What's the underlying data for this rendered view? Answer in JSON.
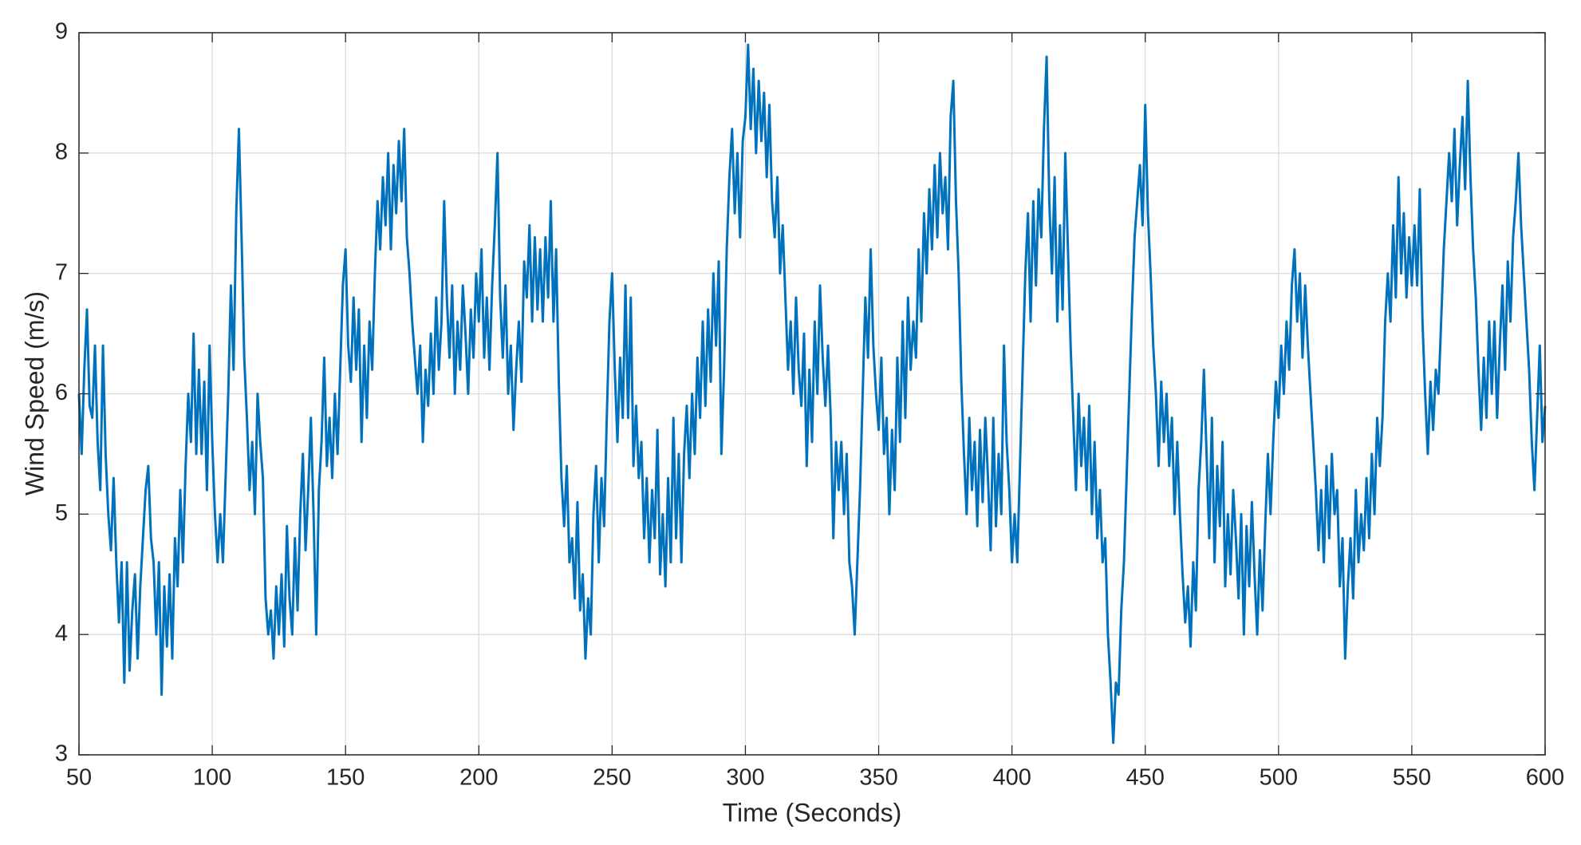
{
  "chart_data": {
    "type": "line",
    "xlabel": "Time (Seconds)",
    "ylabel": "Wind Speed (m/s)",
    "xlim": [
      50,
      600
    ],
    "ylim": [
      3,
      9
    ],
    "xticks": [
      50,
      100,
      150,
      200,
      250,
      300,
      350,
      400,
      450,
      500,
      550,
      600
    ],
    "yticks": [
      3,
      4,
      5,
      6,
      7,
      8,
      9
    ],
    "grid": true,
    "x": [
      50,
      51,
      52,
      53,
      54,
      55,
      56,
      57,
      58,
      59,
      60,
      61,
      62,
      63,
      64,
      65,
      66,
      67,
      68,
      69,
      70,
      71,
      72,
      73,
      74,
      75,
      76,
      77,
      78,
      79,
      80,
      81,
      82,
      83,
      84,
      85,
      86,
      87,
      88,
      89,
      90,
      91,
      92,
      93,
      94,
      95,
      96,
      97,
      98,
      99,
      100,
      101,
      102,
      103,
      104,
      105,
      106,
      107,
      108,
      109,
      110,
      111,
      112,
      113,
      114,
      115,
      116,
      117,
      118,
      119,
      120,
      121,
      122,
      123,
      124,
      125,
      126,
      127,
      128,
      129,
      130,
      131,
      132,
      133,
      134,
      135,
      136,
      137,
      138,
      139,
      140,
      141,
      142,
      143,
      144,
      145,
      146,
      147,
      148,
      149,
      150,
      151,
      152,
      153,
      154,
      155,
      156,
      157,
      158,
      159,
      160,
      161,
      162,
      163,
      164,
      165,
      166,
      167,
      168,
      169,
      170,
      171,
      172,
      173,
      174,
      175,
      176,
      177,
      178,
      179,
      180,
      181,
      182,
      183,
      184,
      185,
      186,
      187,
      188,
      189,
      190,
      191,
      192,
      193,
      194,
      195,
      196,
      197,
      198,
      199,
      200,
      201,
      202,
      203,
      204,
      205,
      206,
      207,
      208,
      209,
      210,
      211,
      212,
      213,
      214,
      215,
      216,
      217,
      218,
      219,
      220,
      221,
      222,
      223,
      224,
      225,
      226,
      227,
      228,
      229,
      230,
      231,
      232,
      233,
      234,
      235,
      236,
      237,
      238,
      239,
      240,
      241,
      242,
      243,
      244,
      245,
      246,
      247,
      248,
      249,
      250,
      251,
      252,
      253,
      254,
      255,
      256,
      257,
      258,
      259,
      260,
      261,
      262,
      263,
      264,
      265,
      266,
      267,
      268,
      269,
      270,
      271,
      272,
      273,
      274,
      275,
      276,
      277,
      278,
      279,
      280,
      281,
      282,
      283,
      284,
      285,
      286,
      287,
      288,
      289,
      290,
      291,
      292,
      293,
      294,
      295,
      296,
      297,
      298,
      299,
      300,
      301,
      302,
      303,
      304,
      305,
      306,
      307,
      308,
      309,
      310,
      311,
      312,
      313,
      314,
      315,
      316,
      317,
      318,
      319,
      320,
      321,
      322,
      323,
      324,
      325,
      326,
      327,
      328,
      329,
      330,
      331,
      332,
      333,
      334,
      335,
      336,
      337,
      338,
      339,
      340,
      341,
      342,
      343,
      344,
      345,
      346,
      347,
      348,
      349,
      350,
      351,
      352,
      353,
      354,
      355,
      356,
      357,
      358,
      359,
      360,
      361,
      362,
      363,
      364,
      365,
      366,
      367,
      368,
      369,
      370,
      371,
      372,
      373,
      374,
      375,
      376,
      377,
      378,
      379,
      380,
      381,
      382,
      383,
      384,
      385,
      386,
      387,
      388,
      389,
      390,
      391,
      392,
      393,
      394,
      395,
      396,
      397,
      398,
      399,
      400,
      401,
      402,
      403,
      404,
      405,
      406,
      407,
      408,
      409,
      410,
      411,
      412,
      413,
      414,
      415,
      416,
      417,
      418,
      419,
      420,
      421,
      422,
      423,
      424,
      425,
      426,
      427,
      428,
      429,
      430,
      431,
      432,
      433,
      434,
      435,
      436,
      437,
      438,
      439,
      440,
      441,
      442,
      443,
      444,
      445,
      446,
      447,
      448,
      449,
      450,
      451,
      452,
      453,
      454,
      455,
      456,
      457,
      458,
      459,
      460,
      461,
      462,
      463,
      464,
      465,
      466,
      467,
      468,
      469,
      470,
      471,
      472,
      473,
      474,
      475,
      476,
      477,
      478,
      479,
      480,
      481,
      482,
      483,
      484,
      485,
      486,
      487,
      488,
      489,
      490,
      491,
      492,
      493,
      494,
      495,
      496,
      497,
      498,
      499,
      500,
      501,
      502,
      503,
      504,
      505,
      506,
      507,
      508,
      509,
      510,
      511,
      512,
      513,
      514,
      515,
      516,
      517,
      518,
      519,
      520,
      521,
      522,
      523,
      524,
      525,
      526,
      527,
      528,
      529,
      530,
      531,
      532,
      533,
      534,
      535,
      536,
      537,
      538,
      539,
      540,
      541,
      542,
      543,
      544,
      545,
      546,
      547,
      548,
      549,
      550,
      551,
      552,
      553,
      554,
      555,
      556,
      557,
      558,
      559,
      560,
      561,
      562,
      563,
      564,
      565,
      566,
      567,
      568,
      569,
      570,
      571,
      572,
      573,
      574,
      575,
      576,
      577,
      578,
      579,
      580,
      581,
      582,
      583,
      584,
      585,
      586,
      587,
      588,
      589,
      590,
      591,
      592,
      593,
      594,
      595,
      596,
      597,
      598,
      599,
      600
    ],
    "series": [
      {
        "name": "Wind Speed",
        "color": "#0072bd",
        "values": [
          6.0,
          5.5,
          6.2,
          6.7,
          5.9,
          5.8,
          6.4,
          5.6,
          5.2,
          6.4,
          5.5,
          5.0,
          4.7,
          5.3,
          4.6,
          4.1,
          4.6,
          3.6,
          4.6,
          3.7,
          4.2,
          4.5,
          3.8,
          4.4,
          4.8,
          5.2,
          5.4,
          4.8,
          4.6,
          4.0,
          4.6,
          3.5,
          4.4,
          3.9,
          4.5,
          3.8,
          4.8,
          4.4,
          5.2,
          4.6,
          5.4,
          6.0,
          5.6,
          6.5,
          5.5,
          6.2,
          5.5,
          6.1,
          5.2,
          6.4,
          5.6,
          5.0,
          4.6,
          5.0,
          4.6,
          5.3,
          6.0,
          6.9,
          6.2,
          7.5,
          8.2,
          7.3,
          6.3,
          5.8,
          5.2,
          5.6,
          5.0,
          6.0,
          5.6,
          5.3,
          4.3,
          4.0,
          4.2,
          3.8,
          4.4,
          4.0,
          4.5,
          3.9,
          4.9,
          4.3,
          4.0,
          4.8,
          4.2,
          5.0,
          5.5,
          4.7,
          5.2,
          5.8,
          5.0,
          4.0,
          5.2,
          5.6,
          6.3,
          5.4,
          5.8,
          5.3,
          6.0,
          5.5,
          6.2,
          6.9,
          7.2,
          6.4,
          6.1,
          6.8,
          6.2,
          6.7,
          5.6,
          6.4,
          5.8,
          6.6,
          6.2,
          7.0,
          7.6,
          7.2,
          7.8,
          7.4,
          8.0,
          7.2,
          7.9,
          7.5,
          8.1,
          7.6,
          8.2,
          7.3,
          7.0,
          6.6,
          6.3,
          6.0,
          6.4,
          5.6,
          6.2,
          5.9,
          6.5,
          6.0,
          6.8,
          6.2,
          6.6,
          7.6,
          6.8,
          6.3,
          6.9,
          6.0,
          6.6,
          6.2,
          6.9,
          6.5,
          6.0,
          6.7,
          6.3,
          7.0,
          6.6,
          7.2,
          6.3,
          6.8,
          6.2,
          6.9,
          7.4,
          8.0,
          6.8,
          6.3,
          6.9,
          6.0,
          6.4,
          5.7,
          6.2,
          6.6,
          6.1,
          7.1,
          6.8,
          7.4,
          6.6,
          7.3,
          6.7,
          7.2,
          6.6,
          7.3,
          6.8,
          7.6,
          6.6,
          7.2,
          6.1,
          5.3,
          4.9,
          5.4,
          4.6,
          4.8,
          4.3,
          5.1,
          4.2,
          4.5,
          3.8,
          4.3,
          4.0,
          5.0,
          5.4,
          4.6,
          5.3,
          4.9,
          5.8,
          6.6,
          7.0,
          6.2,
          5.6,
          6.3,
          5.8,
          6.9,
          5.8,
          6.8,
          5.4,
          5.9,
          5.3,
          5.6,
          4.8,
          5.3,
          4.6,
          5.2,
          4.8,
          5.7,
          4.5,
          5.0,
          4.4,
          5.3,
          4.6,
          5.8,
          4.8,
          5.5,
          4.6,
          5.5,
          5.9,
          5.3,
          6.0,
          5.5,
          6.3,
          5.8,
          6.6,
          5.9,
          6.7,
          6.1,
          7.0,
          6.4,
          7.1,
          5.5,
          6.2,
          7.2,
          7.8,
          8.2,
          7.5,
          8.0,
          7.3,
          8.1,
          8.3,
          8.9,
          8.2,
          8.7,
          8.0,
          8.6,
          8.1,
          8.5,
          7.8,
          8.4,
          7.6,
          7.3,
          7.8,
          7.0,
          7.4,
          6.8,
          6.2,
          6.6,
          6.0,
          6.8,
          6.2,
          5.9,
          6.5,
          5.4,
          6.2,
          5.6,
          6.6,
          6.0,
          6.9,
          6.3,
          5.9,
          6.4,
          5.8,
          4.8,
          5.6,
          5.2,
          5.6,
          5.0,
          5.5,
          4.6,
          4.4,
          4.0,
          4.6,
          5.2,
          6.0,
          6.8,
          6.3,
          7.2,
          6.4,
          6.0,
          5.7,
          6.3,
          5.5,
          5.8,
          5.0,
          5.7,
          5.2,
          6.3,
          5.6,
          6.6,
          5.8,
          6.8,
          6.2,
          6.6,
          6.3,
          7.2,
          6.6,
          7.5,
          7.0,
          7.7,
          7.2,
          7.9,
          7.3,
          8.0,
          7.5,
          7.8,
          7.2,
          8.3,
          8.6,
          7.6,
          7.0,
          6.1,
          5.5,
          5.0,
          5.8,
          5.2,
          5.6,
          4.9,
          5.7,
          5.1,
          5.8,
          5.3,
          4.7,
          5.8,
          4.9,
          5.5,
          5.0,
          6.4,
          5.6,
          5.2,
          4.6,
          5.0,
          4.6,
          5.4,
          6.2,
          7.0,
          7.5,
          6.6,
          7.6,
          6.9,
          7.7,
          7.3,
          8.2,
          8.8,
          7.6,
          7.0,
          7.8,
          6.6,
          7.4,
          6.7,
          8.0,
          7.2,
          6.4,
          5.8,
          5.2,
          6.0,
          5.4,
          5.8,
          5.2,
          5.9,
          5.0,
          5.6,
          4.8,
          5.2,
          4.6,
          4.8,
          4.0,
          3.6,
          3.1,
          3.6,
          3.5,
          4.2,
          4.6,
          5.3,
          6.0,
          6.7,
          7.3,
          7.6,
          7.9,
          7.4,
          8.4,
          7.5,
          7.0,
          6.4,
          6.0,
          5.4,
          6.1,
          5.6,
          6.0,
          5.4,
          5.8,
          5.0,
          5.6,
          5.0,
          4.5,
          4.1,
          4.4,
          3.9,
          4.6,
          4.2,
          5.2,
          5.6,
          6.2,
          5.5,
          4.8,
          5.8,
          4.6,
          5.4,
          4.9,
          5.6,
          4.4,
          5.0,
          4.5,
          5.2,
          4.8,
          4.3,
          5.0,
          4.0,
          4.9,
          4.4,
          5.1,
          4.5,
          4.0,
          4.7,
          4.2,
          4.9,
          5.5,
          5.0,
          5.6,
          6.1,
          5.8,
          6.4,
          6.0,
          6.6,
          6.2,
          6.9,
          7.2,
          6.6,
          7.0,
          6.3,
          6.9,
          6.4,
          6.0,
          5.6,
          5.2,
          4.7,
          5.2,
          4.6,
          5.4,
          4.8,
          5.5,
          5.0,
          5.2,
          4.4,
          4.8,
          3.8,
          4.4,
          4.8,
          4.3,
          5.2,
          4.6,
          5.0,
          4.7,
          5.3,
          4.8,
          5.5,
          5.0,
          5.8,
          5.4,
          5.8,
          6.6,
          7.0,
          6.6,
          7.4,
          6.8,
          7.8,
          7.0,
          7.5,
          6.8,
          7.3,
          6.9,
          7.4,
          6.9,
          7.7,
          6.6,
          6.0,
          5.5,
          6.1,
          5.7,
          6.2,
          6.0,
          6.6,
          7.2,
          7.6,
          8.0,
          7.6,
          8.2,
          7.4,
          7.9,
          8.3,
          7.7,
          8.6,
          7.8,
          7.2,
          6.8,
          6.2,
          5.7,
          6.3,
          5.8,
          6.6,
          6.0,
          6.6,
          5.8,
          6.4,
          6.9,
          6.2,
          7.1,
          6.6,
          7.3,
          7.6,
          8.0,
          7.4,
          7.0,
          6.6,
          6.2,
          5.6,
          5.2,
          5.8,
          6.4,
          5.6,
          5.9
        ]
      }
    ]
  }
}
